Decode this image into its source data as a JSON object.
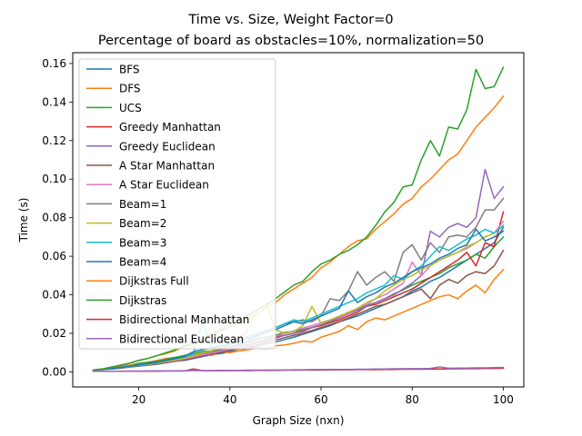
{
  "chart_data": {
    "type": "line",
    "title_line1": "Time vs. Size, Weight Factor=0",
    "title_line2": "Percentage of board as obstacles=10%, normalization=50",
    "xlabel": "Graph Size (nxn)",
    "ylabel": "Time (s)",
    "xlim": [
      5.5,
      104.5
    ],
    "ylim": [
      -0.0078,
      0.1656
    ],
    "xticks": [
      20,
      40,
      60,
      80,
      100
    ],
    "xtick_labels": [
      "20",
      "40",
      "60",
      "80",
      "100"
    ],
    "yticks": [
      0.0,
      0.02,
      0.04,
      0.06,
      0.08,
      0.1,
      0.12,
      0.14,
      0.16
    ],
    "ytick_labels": [
      "0.00",
      "0.02",
      "0.04",
      "0.06",
      "0.08",
      "0.10",
      "0.12",
      "0.14",
      "0.16"
    ],
    "grid": false,
    "legend_position": "upper-left",
    "x": [
      10,
      12,
      14,
      16,
      18,
      20,
      22,
      24,
      26,
      28,
      30,
      32,
      34,
      36,
      38,
      40,
      42,
      44,
      46,
      48,
      50,
      52,
      54,
      56,
      58,
      60,
      62,
      64,
      66,
      68,
      70,
      72,
      74,
      76,
      78,
      80,
      82,
      84,
      86,
      88,
      90,
      92,
      94,
      96,
      98,
      100
    ],
    "series": [
      {
        "name": "BFS",
        "color": "#1f77b4",
        "values": [
          0.001,
          0.0012,
          0.0015,
          0.002,
          0.0025,
          0.003,
          0.0035,
          0.004,
          0.0048,
          0.0056,
          0.006,
          0.007,
          0.008,
          0.009,
          0.0095,
          0.0105,
          0.011,
          0.012,
          0.0135,
          0.0145,
          0.0155,
          0.0168,
          0.018,
          0.0195,
          0.021,
          0.0225,
          0.024,
          0.026,
          0.0275,
          0.029,
          0.031,
          0.033,
          0.035,
          0.037,
          0.039,
          0.042,
          0.044,
          0.047,
          0.049,
          0.052,
          0.055,
          0.058,
          0.061,
          0.064,
          0.067,
          0.075
        ]
      },
      {
        "name": "DFS",
        "color": "#ff7f0e",
        "values": [
          0.001,
          0.0015,
          0.002,
          0.003,
          0.0035,
          0.0045,
          0.005,
          0.006,
          0.007,
          0.0075,
          0.008,
          0.009,
          0.0095,
          0.0085,
          0.0105,
          0.01,
          0.011,
          0.0115,
          0.0125,
          0.012,
          0.0135,
          0.014,
          0.0148,
          0.016,
          0.0155,
          0.018,
          0.0195,
          0.021,
          0.024,
          0.022,
          0.026,
          0.028,
          0.027,
          0.029,
          0.031,
          0.033,
          0.035,
          0.037,
          0.039,
          0.04,
          0.038,
          0.042,
          0.045,
          0.041,
          0.048,
          0.053
        ]
      },
      {
        "name": "UCS",
        "color": "#2ca02c",
        "values": [
          0.001,
          0.0015,
          0.002,
          0.0025,
          0.003,
          0.0045,
          0.005,
          0.0055,
          0.0065,
          0.0075,
          0.0085,
          0.0095,
          0.0105,
          0.011,
          0.012,
          0.013,
          0.014,
          0.0155,
          0.017,
          0.018,
          0.019,
          0.0205,
          0.021,
          0.022,
          0.023,
          0.0245,
          0.0265,
          0.0285,
          0.0305,
          0.0325,
          0.0345,
          0.036,
          0.038,
          0.0405,
          0.0425,
          0.045,
          0.047,
          0.049,
          0.051,
          0.054,
          0.056,
          0.058,
          0.061,
          0.059,
          0.065,
          0.07
        ]
      },
      {
        "name": "Greedy Manhattan",
        "color": "#d62728",
        "values": [
          0.001,
          0.0012,
          0.0018,
          0.002,
          0.0028,
          0.0035,
          0.0038,
          0.0045,
          0.0052,
          0.0058,
          0.0075,
          0.0085,
          0.0095,
          0.0105,
          0.0115,
          0.012,
          0.0135,
          0.014,
          0.0155,
          0.0165,
          0.018,
          0.019,
          0.02,
          0.021,
          0.023,
          0.024,
          0.0255,
          0.027,
          0.029,
          0.031,
          0.034,
          0.035,
          0.037,
          0.039,
          0.041,
          0.043,
          0.046,
          0.049,
          0.052,
          0.055,
          0.058,
          0.062,
          0.055,
          0.067,
          0.065,
          0.083
        ]
      },
      {
        "name": "Greedy Euclidean",
        "color": "#9467bd",
        "values": [
          0.001,
          0.0013,
          0.0017,
          0.0022,
          0.0028,
          0.0033,
          0.0038,
          0.0043,
          0.005,
          0.0058,
          0.0068,
          0.0078,
          0.0088,
          0.0098,
          0.0108,
          0.0118,
          0.013,
          0.014,
          0.015,
          0.0162,
          0.0175,
          0.019,
          0.02,
          0.0215,
          0.023,
          0.0245,
          0.026,
          0.028,
          0.03,
          0.032,
          0.034,
          0.036,
          0.038,
          0.04,
          0.043,
          0.046,
          0.05,
          0.073,
          0.07,
          0.075,
          0.077,
          0.075,
          0.08,
          0.105,
          0.09,
          0.096
        ]
      },
      {
        "name": "A Star Manhattan",
        "color": "#8c564b",
        "values": [
          0.001,
          0.0012,
          0.0016,
          0.002,
          0.0026,
          0.0032,
          0.0037,
          0.0042,
          0.0048,
          0.0055,
          0.0063,
          0.0072,
          0.0082,
          0.0092,
          0.0102,
          0.0112,
          0.012,
          0.013,
          0.014,
          0.0152,
          0.0165,
          0.0178,
          0.019,
          0.02,
          0.0215,
          0.023,
          0.0245,
          0.026,
          0.028,
          0.03,
          0.032,
          0.034,
          0.035,
          0.037,
          0.039,
          0.041,
          0.043,
          0.038,
          0.045,
          0.048,
          0.046,
          0.05,
          0.052,
          0.051,
          0.055,
          0.063
        ]
      },
      {
        "name": "A Star Euclidean",
        "color": "#e377c2",
        "values": [
          0.001,
          0.0013,
          0.0017,
          0.0022,
          0.0027,
          0.0033,
          0.0039,
          0.0046,
          0.0053,
          0.006,
          0.0068,
          0.0078,
          0.0088,
          0.0098,
          0.0108,
          0.012,
          0.0133,
          0.0145,
          0.0158,
          0.017,
          0.0185,
          0.02,
          0.0213,
          0.0228,
          0.024,
          0.0255,
          0.027,
          0.0285,
          0.03,
          0.033,
          0.035,
          0.038,
          0.04,
          0.043,
          0.046,
          0.057,
          0.05,
          0.055,
          0.058,
          0.06,
          0.062,
          0.064,
          0.067,
          0.07,
          0.072,
          0.078
        ]
      },
      {
        "name": "Beam=1",
        "color": "#7f7f7f",
        "values": [
          0.001,
          0.0014,
          0.0018,
          0.0024,
          0.003,
          0.0037,
          0.0043,
          0.005,
          0.0058,
          0.0066,
          0.0075,
          0.0085,
          0.0095,
          0.0105,
          0.0115,
          0.013,
          0.0145,
          0.016,
          0.0185,
          0.021,
          0.023,
          0.025,
          0.026,
          0.027,
          0.026,
          0.029,
          0.038,
          0.037,
          0.042,
          0.052,
          0.045,
          0.049,
          0.052,
          0.047,
          0.062,
          0.066,
          0.058,
          0.067,
          0.062,
          0.07,
          0.071,
          0.07,
          0.075,
          0.084,
          0.084,
          0.09
        ]
      },
      {
        "name": "Beam=2",
        "color": "#bcbd22",
        "values": [
          0.001,
          0.0013,
          0.0017,
          0.0022,
          0.0028,
          0.0034,
          0.004,
          0.0047,
          0.0055,
          0.0063,
          0.0072,
          0.0085,
          0.0098,
          0.011,
          0.0125,
          0.014,
          0.017,
          0.022,
          0.032,
          0.035,
          0.022,
          0.02,
          0.021,
          0.024,
          0.034,
          0.025,
          0.027,
          0.029,
          0.031,
          0.033,
          0.036,
          0.038,
          0.042,
          0.045,
          0.048,
          0.05,
          0.053,
          0.055,
          0.058,
          0.06,
          0.062,
          0.065,
          0.067,
          0.07,
          0.072,
          0.076
        ]
      },
      {
        "name": "Beam=3",
        "color": "#17becf",
        "values": [
          0.001,
          0.0013,
          0.0018,
          0.0023,
          0.0029,
          0.0035,
          0.0042,
          0.005,
          0.0059,
          0.0068,
          0.0078,
          0.0092,
          0.026,
          0.012,
          0.0135,
          0.015,
          0.017,
          0.0185,
          0.02,
          0.0215,
          0.023,
          0.025,
          0.027,
          0.026,
          0.028,
          0.03,
          0.032,
          0.034,
          0.036,
          0.038,
          0.041,
          0.043,
          0.045,
          0.05,
          0.048,
          0.052,
          0.055,
          0.06,
          0.065,
          0.063,
          0.066,
          0.069,
          0.071,
          0.074,
          0.072,
          0.076
        ]
      },
      {
        "name": "Beam=4",
        "color": "#1f77b4",
        "values": [
          0.001,
          0.0013,
          0.0017,
          0.0023,
          0.0029,
          0.0036,
          0.0043,
          0.0051,
          0.006,
          0.007,
          0.008,
          0.0105,
          0.0115,
          0.0125,
          0.0135,
          0.0145,
          0.016,
          0.0175,
          0.019,
          0.0205,
          0.022,
          0.024,
          0.026,
          0.025,
          0.027,
          0.029,
          0.031,
          0.033,
          0.042,
          0.036,
          0.039,
          0.041,
          0.044,
          0.046,
          0.049,
          0.052,
          0.054,
          0.056,
          0.059,
          0.061,
          0.064,
          0.066,
          0.074,
          0.068,
          0.07,
          0.073
        ]
      },
      {
        "name": "Dijkstras Full",
        "color": "#ff7f0e",
        "values": [
          0.001,
          0.0015,
          0.0025,
          0.0035,
          0.0045,
          0.006,
          0.007,
          0.0085,
          0.0095,
          0.011,
          0.013,
          0.0145,
          0.016,
          0.0185,
          0.021,
          0.0235,
          0.0255,
          0.028,
          0.03,
          0.0335,
          0.036,
          0.04,
          0.043,
          0.046,
          0.049,
          0.054,
          0.057,
          0.061,
          0.065,
          0.068,
          0.069,
          0.074,
          0.078,
          0.082,
          0.087,
          0.09,
          0.096,
          0.1,
          0.105,
          0.11,
          0.113,
          0.12,
          0.127,
          0.132,
          0.137,
          0.143
        ]
      },
      {
        "name": "Dijkstras",
        "color": "#2ca02c",
        "values": [
          0.001,
          0.0015,
          0.0025,
          0.0035,
          0.0045,
          0.006,
          0.007,
          0.0085,
          0.01,
          0.0115,
          0.0135,
          0.015,
          0.017,
          0.0195,
          0.022,
          0.025,
          0.027,
          0.0295,
          0.032,
          0.035,
          0.038,
          0.0415,
          0.045,
          0.047,
          0.052,
          0.056,
          0.058,
          0.061,
          0.063,
          0.066,
          0.07,
          0.076,
          0.083,
          0.088,
          0.096,
          0.097,
          0.11,
          0.12,
          0.112,
          0.127,
          0.126,
          0.136,
          0.157,
          0.147,
          0.148,
          0.158
        ]
      },
      {
        "name": "Bidirectional Manhattan",
        "color": "#d62728",
        "values": [
          0.0003,
          0.0003,
          0.0003,
          0.0003,
          0.0004,
          0.0004,
          0.0004,
          0.0004,
          0.0005,
          0.0005,
          0.0005,
          0.0015,
          0.0006,
          0.0006,
          0.0006,
          0.0007,
          0.0007,
          0.0007,
          0.0008,
          0.0008,
          0.0008,
          0.0009,
          0.0009,
          0.001,
          0.001,
          0.001,
          0.0011,
          0.0011,
          0.0011,
          0.0012,
          0.0012,
          0.0012,
          0.0013,
          0.0013,
          0.0014,
          0.0014,
          0.0014,
          0.0015,
          0.0015,
          0.0016,
          0.0016,
          0.0017,
          0.0017,
          0.0018,
          0.0018,
          0.0019
        ]
      },
      {
        "name": "Bidirectional Euclidean",
        "color": "#9467bd",
        "values": [
          0.0003,
          0.0003,
          0.0003,
          0.0004,
          0.0004,
          0.0004,
          0.0005,
          0.0005,
          0.0005,
          0.0005,
          0.0006,
          0.0007,
          0.0007,
          0.0007,
          0.0008,
          0.0008,
          0.0008,
          0.0009,
          0.0009,
          0.001,
          0.001,
          0.001,
          0.0011,
          0.0011,
          0.0012,
          0.0012,
          0.0013,
          0.0013,
          0.0013,
          0.0014,
          0.0014,
          0.0015,
          0.0015,
          0.0016,
          0.0016,
          0.0017,
          0.0017,
          0.0018,
          0.0026,
          0.0019,
          0.002,
          0.002,
          0.0021,
          0.0021,
          0.0022,
          0.0023
        ]
      }
    ]
  }
}
